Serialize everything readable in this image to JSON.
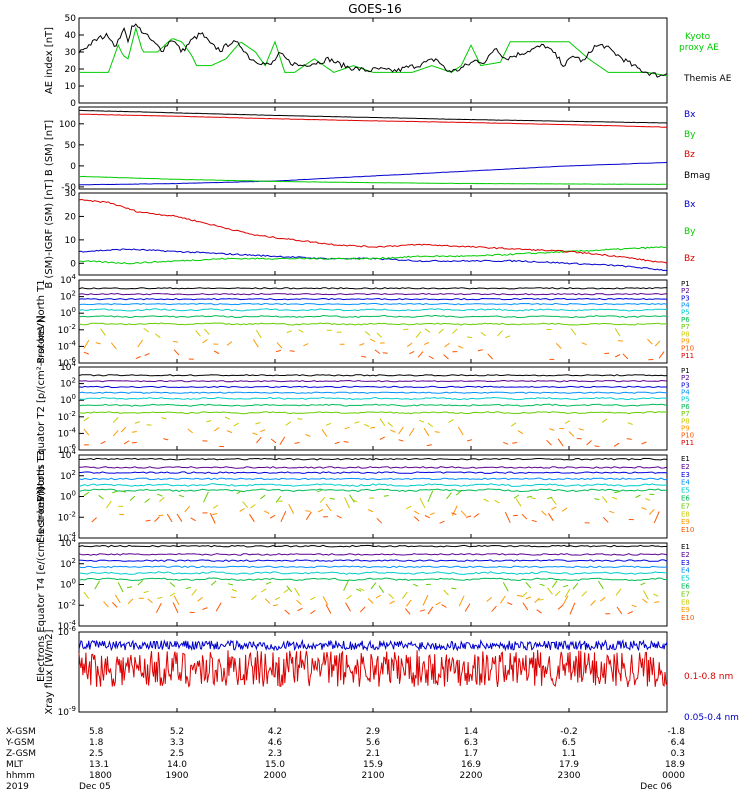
{
  "title": "GOES-16",
  "colors": {
    "black": "#000000",
    "blue": "#0000cc",
    "green": "#00cc00",
    "red": "#dd0000",
    "p_levels": [
      "#000000",
      "#5a0090",
      "#0000dd",
      "#0090ff",
      "#00cccc",
      "#00bb55",
      "#66cc00",
      "#cccc00",
      "#ff9900",
      "#ff5500",
      "#dd0000"
    ],
    "e_levels": [
      "#000000",
      "#5a0090",
      "#0000dd",
      "#0090ff",
      "#00cccc",
      "#00bb55",
      "#66cc00",
      "#cccc00",
      "#ff9900",
      "#ff5500",
      "#dd0000"
    ]
  },
  "time_axis": {
    "ticks": [
      "1800",
      "1900",
      "2000",
      "2100",
      "2200",
      "2300",
      "0000"
    ],
    "xlim": [
      1800,
      2400
    ]
  },
  "ephemeris": {
    "labels": [
      "X-GSM",
      "Y-GSM",
      "Z-GSM",
      "MLT",
      "hhmm",
      "2019"
    ],
    "rows": [
      [
        "5.8",
        "5.2",
        "4.2",
        "2.9",
        "1.4",
        "-0.2",
        "-1.8"
      ],
      [
        "1.8",
        "3.3",
        "4.6",
        "5.6",
        "6.3",
        "6.5",
        "6.4"
      ],
      [
        "2.5",
        "2.5",
        "2.3",
        "2.1",
        "1.7",
        "1.1",
        "0.3"
      ],
      [
        "13.1",
        "14.0",
        "15.0",
        "15.9",
        "16.9",
        "17.9",
        "18.9"
      ],
      [
        "1800",
        "1900",
        "2000",
        "2100",
        "2200",
        "2300",
        "0000"
      ]
    ],
    "dates": [
      "Dec 05",
      "Dec 06"
    ]
  },
  "chart_data": [
    {
      "type": "line",
      "ylabel": "AE index [nT]",
      "ylim": [
        0,
        50
      ],
      "yticks": [
        "0",
        "10",
        "20",
        "30",
        "40",
        "50"
      ],
      "series": [
        {
          "name": "Kyoto proxy AE",
          "color": "#00cc00",
          "x": [
            1800,
            1815,
            1830,
            1840,
            1845,
            1850,
            1858,
            1865,
            1880,
            1895,
            1905,
            1915,
            1920,
            1935,
            1950,
            1965,
            1980,
            1990,
            2000,
            2010,
            2020,
            2040,
            2060,
            2080,
            2100,
            2120,
            2140,
            2160,
            2180,
            2190,
            2200,
            2210,
            2230,
            2240,
            2250,
            2270,
            2290,
            2300,
            2320,
            2340,
            2360,
            2380,
            2400
          ],
          "y": [
            18,
            18,
            18,
            34,
            28,
            26,
            44,
            30,
            30,
            38,
            36,
            28,
            22,
            22,
            26,
            36,
            30,
            22,
            36,
            18,
            18,
            26,
            18,
            22,
            18,
            18,
            18,
            22,
            18,
            22,
            34,
            22,
            24,
            36,
            36,
            36,
            36,
            36,
            26,
            18,
            18,
            18,
            16
          ]
        },
        {
          "name": "Themis AE",
          "color": "#000000",
          "x": [
            1800,
            1810,
            1820,
            1830,
            1838,
            1845,
            1850,
            1855,
            1865,
            1875,
            1885,
            1895,
            1905,
            1915,
            1925,
            1935,
            1945,
            1955,
            1965,
            1975,
            1985,
            1995,
            2005,
            2015,
            2025,
            2035,
            2045,
            2055,
            2065,
            2075,
            2085,
            2095,
            2105,
            2115,
            2125,
            2135,
            2145,
            2155,
            2165,
            2175,
            2185,
            2195,
            2205,
            2215,
            2225,
            2235,
            2245,
            2255,
            2265,
            2275,
            2285,
            2295,
            2305,
            2315,
            2325,
            2335,
            2345,
            2355,
            2365,
            2375,
            2385,
            2395,
            2400
          ],
          "y": [
            30,
            34,
            38,
            40,
            33,
            44,
            37,
            47,
            42,
            36,
            31,
            38,
            30,
            37,
            41,
            34,
            31,
            36,
            34,
            26,
            24,
            22,
            29,
            24,
            22,
            23,
            24,
            26,
            23,
            21,
            20,
            19,
            20,
            19,
            19,
            21,
            22,
            24,
            26,
            19,
            19,
            22,
            25,
            24,
            33,
            26,
            28,
            30,
            32,
            34,
            29,
            22,
            28,
            24,
            33,
            34,
            30,
            26,
            22,
            19,
            17,
            16,
            18
          ]
        }
      ]
    },
    {
      "type": "line",
      "ylabel": "B (SM) [nT]",
      "ylim": [
        -55,
        140
      ],
      "yticks": [
        "-50",
        "0",
        "50",
        "100"
      ],
      "series": [
        {
          "name": "Bx",
          "color": "#0000cc",
          "x": [
            1800,
            1900,
            2000,
            2100,
            2200,
            2300,
            2400
          ],
          "y": [
            -45,
            -42,
            -36,
            -24,
            -12,
            0,
            8
          ]
        },
        {
          "name": "By",
          "color": "#00cc00",
          "x": [
            1800,
            1900,
            2000,
            2100,
            2200,
            2300,
            2400
          ],
          "y": [
            -25,
            -32,
            -37,
            -40,
            -42,
            -43,
            -44
          ]
        },
        {
          "name": "Bz",
          "color": "#dd0000",
          "x": [
            1800,
            1900,
            2000,
            2100,
            2200,
            2300,
            2400
          ],
          "y": [
            123,
            118,
            112,
            107,
            103,
            98,
            92
          ]
        },
        {
          "name": "Bmag",
          "color": "#000000",
          "x": [
            1800,
            1900,
            2000,
            2100,
            2200,
            2300,
            2400
          ],
          "y": [
            132,
            126,
            120,
            115,
            110,
            106,
            102
          ]
        }
      ]
    },
    {
      "type": "line",
      "ylabel": "B (SM)-IGRF (SM) [nT]",
      "ylim": [
        -5,
        30
      ],
      "yticks": [
        "0",
        "10",
        "20",
        "30"
      ],
      "series": [
        {
          "name": "Bx",
          "color": "#0000cc",
          "x": [
            1800,
            1850,
            1900,
            1950,
            2000,
            2050,
            2100,
            2150,
            2200,
            2250,
            2300,
            2350,
            2400
          ],
          "y": [
            5,
            6,
            5,
            4,
            3,
            2,
            2,
            1,
            1,
            1,
            0,
            -1,
            -3
          ]
        },
        {
          "name": "By",
          "color": "#00cc00",
          "x": [
            1800,
            1850,
            1900,
            1950,
            2000,
            2050,
            2100,
            2150,
            2200,
            2250,
            2300,
            2350,
            2400
          ],
          "y": [
            1,
            0,
            1,
            2,
            2,
            2,
            2,
            3,
            3,
            4,
            5,
            6,
            7
          ]
        },
        {
          "name": "Bz",
          "color": "#dd0000",
          "x": [
            1800,
            1830,
            1860,
            1900,
            1940,
            1980,
            2020,
            2060,
            2100,
            2150,
            2200,
            2250,
            2300,
            2350,
            2400
          ],
          "y": [
            27,
            26,
            22,
            20,
            16,
            12,
            10,
            8,
            7,
            8,
            7,
            6,
            5,
            3,
            0
          ]
        }
      ]
    },
    {
      "type": "line",
      "ylabel": "Protons North T1",
      "log": true,
      "ylim_exp": [
        -6,
        4
      ],
      "ytick_exps": [
        -6,
        -4,
        -2,
        0,
        2,
        4
      ],
      "channels": [
        "P1",
        "P2",
        "P3",
        "P4",
        "P5",
        "P6",
        "P7",
        "P8",
        "P9",
        "P10",
        "P11"
      ],
      "levels_exp": [
        3.0,
        2.3,
        1.7,
        1.1,
        0.4,
        -0.4,
        -1.3,
        -2.4,
        -3.7,
        -5.0,
        -6.0
      ]
    },
    {
      "type": "line",
      "ylabel": "Protons Equator T2 [p/(cm²-s-sr-keV)]",
      "log": true,
      "ylim_exp": [
        -6,
        4
      ],
      "ytick_exps": [
        -6,
        -4,
        -2,
        0,
        2,
        4
      ],
      "channels": [
        "P1",
        "P2",
        "P3",
        "P4",
        "P5",
        "P6",
        "P7",
        "P8",
        "P9",
        "P10",
        "P11"
      ],
      "levels_exp": [
        3.0,
        2.3,
        1.6,
        0.9,
        0.2,
        -0.6,
        -1.5,
        -2.6,
        -3.8,
        -5.0,
        -6.0
      ]
    },
    {
      "type": "line",
      "ylabel": "Electrons North T3",
      "log": true,
      "ylim_exp": [
        -4,
        4
      ],
      "ytick_exps": [
        -4,
        -2,
        0,
        2,
        4
      ],
      "channels": [
        "E1",
        "E2",
        "E3",
        "E4",
        "E5",
        "E6",
        "E7",
        "E8",
        "E9",
        "E10"
      ],
      "levels_exp": [
        3.6,
        2.8,
        2.3,
        1.7,
        1.1,
        0.6,
        0.0,
        -0.6,
        -1.3,
        -2.0
      ]
    },
    {
      "type": "line",
      "ylabel": "Electrons Equator T4 [e/(cm²-s-sr-keV)]",
      "log": true,
      "ylim_exp": [
        -4,
        4
      ],
      "ytick_exps": [
        -4,
        -2,
        0,
        2,
        4
      ],
      "channels": [
        "E1",
        "E2",
        "E3",
        "E4",
        "E5",
        "E6",
        "E7",
        "E8",
        "E9",
        "E10"
      ],
      "levels_exp": [
        3.7,
        2.9,
        2.3,
        1.7,
        1.1,
        0.5,
        -0.2,
        -0.9,
        -1.6,
        -2.3
      ]
    },
    {
      "type": "line",
      "ylabel": "Xray flux [W/m2]",
      "log": true,
      "ylim_exp": [
        -9,
        -6
      ],
      "ytick_exps": [
        -9,
        -6
      ],
      "series": [
        {
          "name": "0.1-0.8 nm",
          "color": "#dd0000",
          "level_exp": -7.3
        },
        {
          "name": "0.05-0.4 nm",
          "color": "#0000cc",
          "level_exp": -6.5
        }
      ]
    }
  ]
}
